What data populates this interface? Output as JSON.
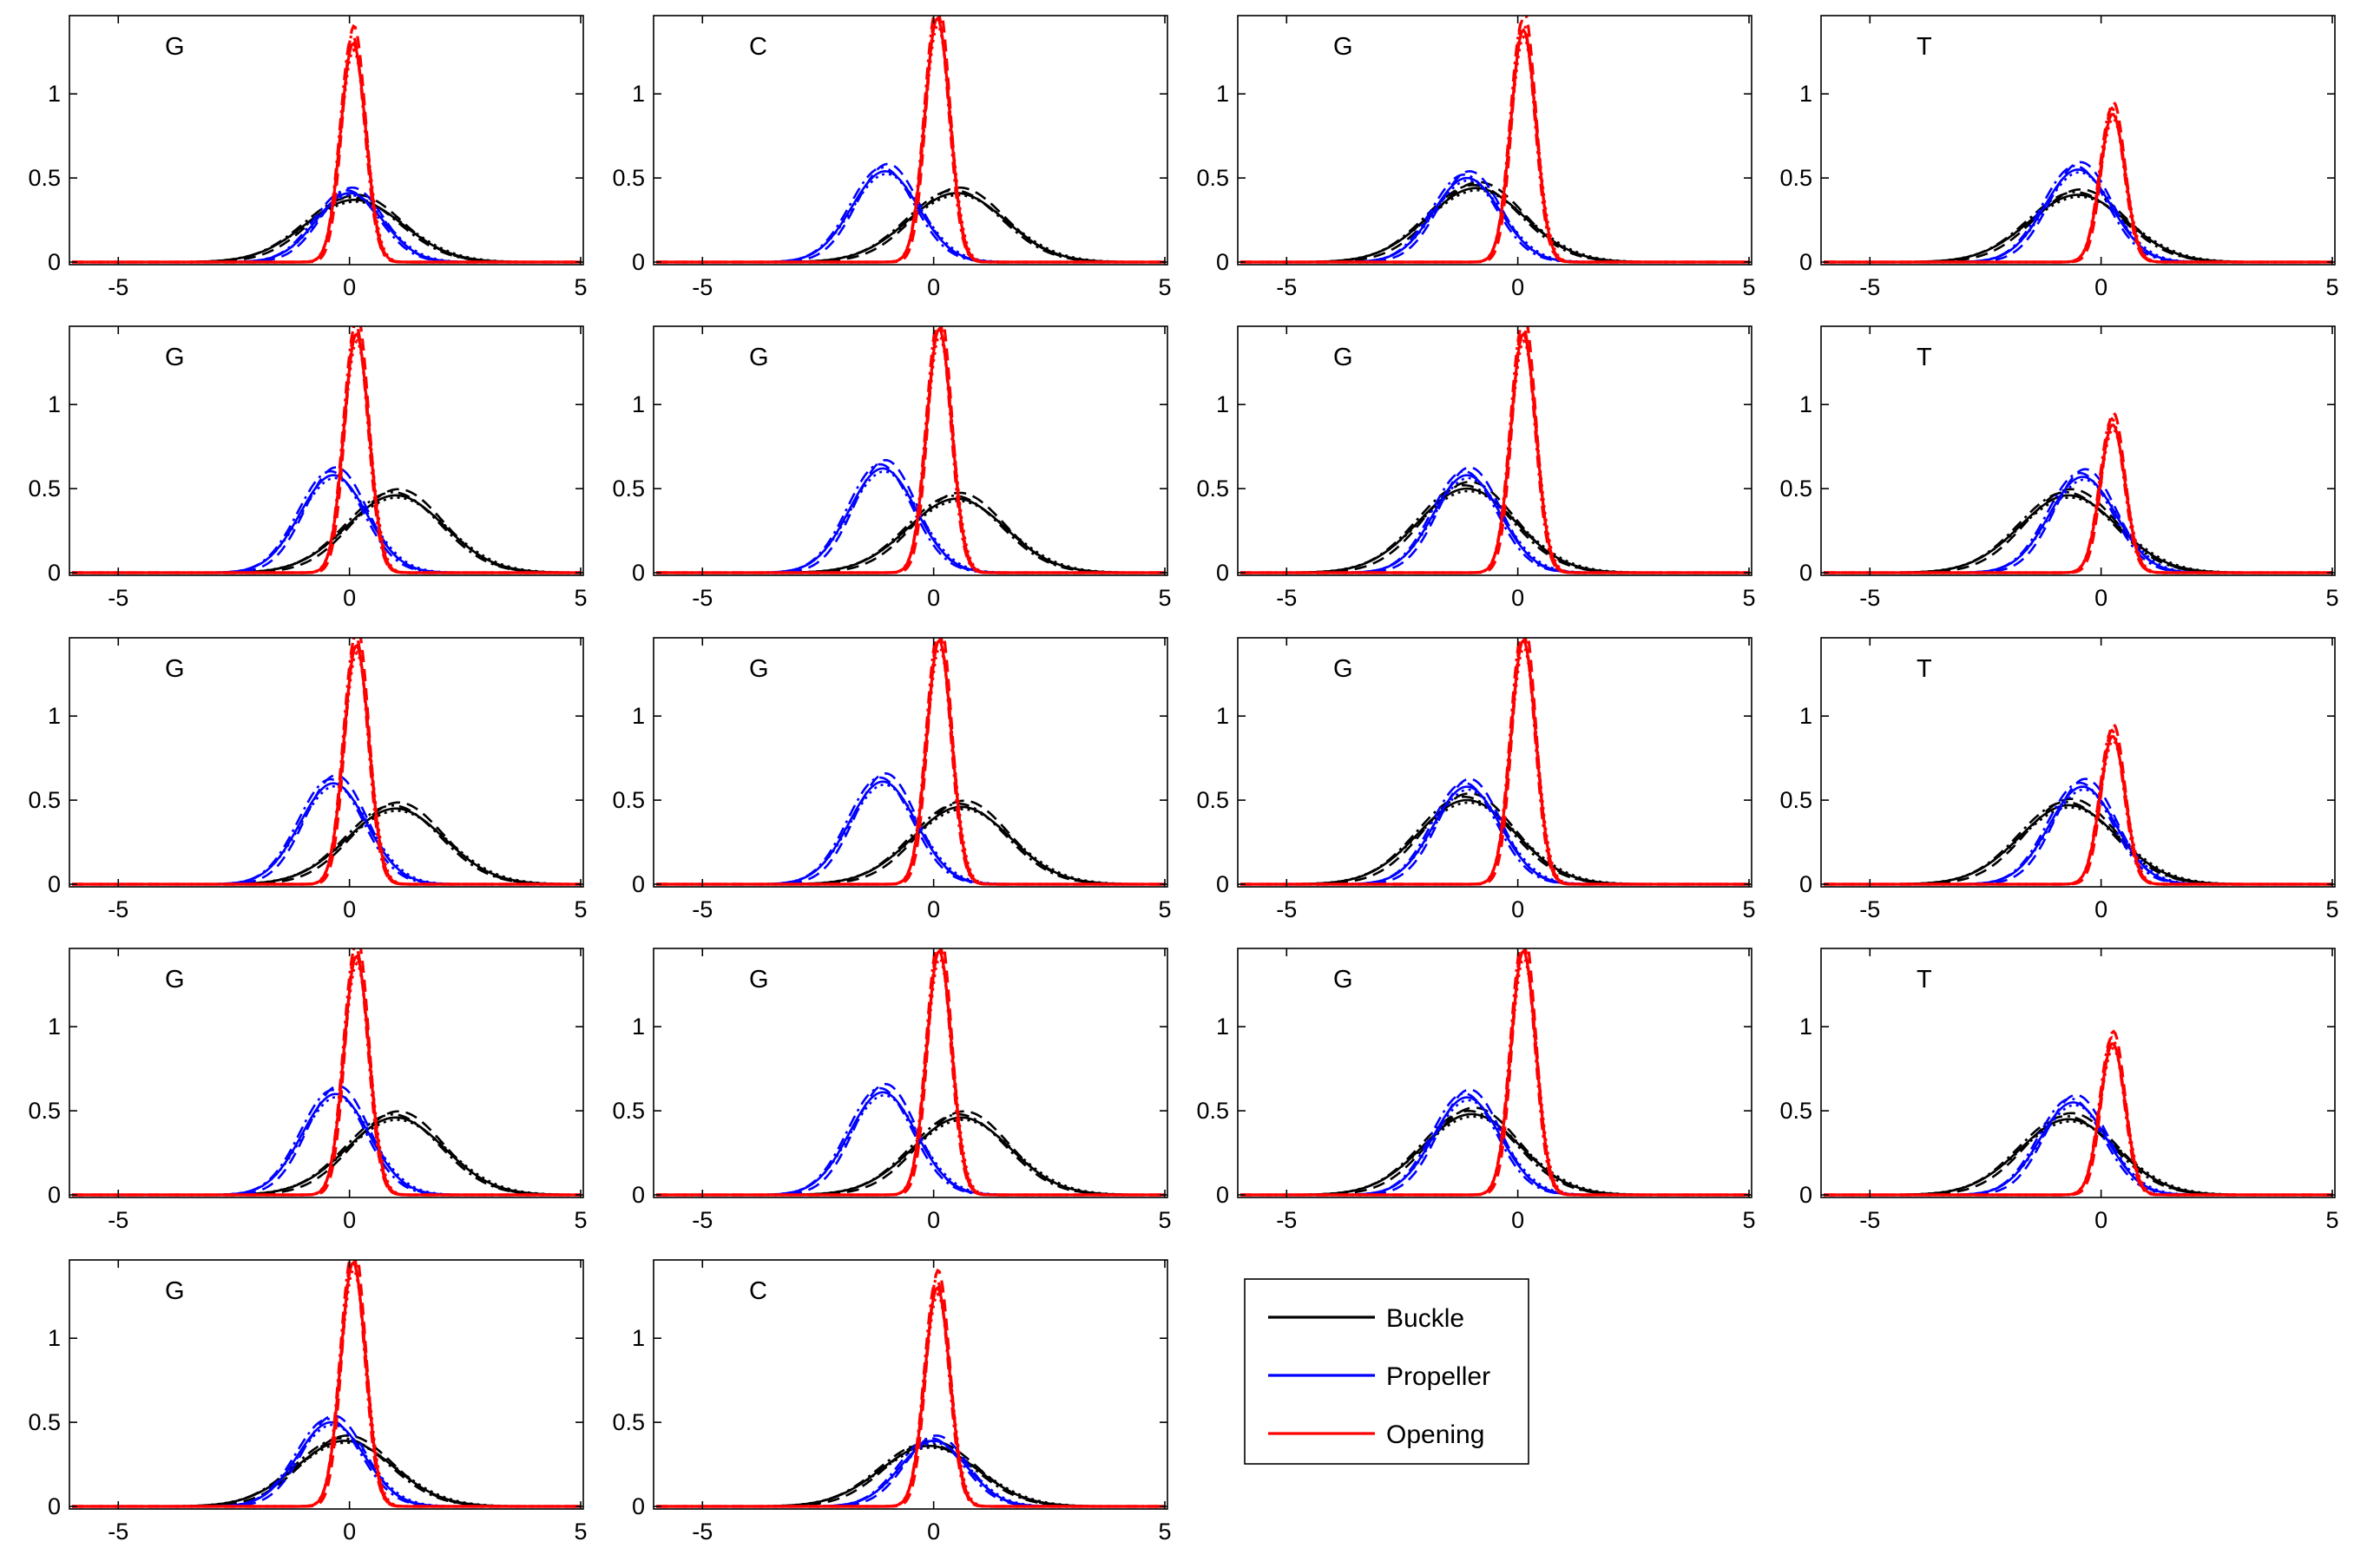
{
  "chart_data": {
    "type": "line",
    "layout": "small multiples, 5 rows x 4 columns (18 panels)",
    "xlim": [
      -6,
      5
    ],
    "ylim": [
      0,
      1.45
    ],
    "xticks": [
      "-5",
      "0",
      "5"
    ],
    "yticks": [
      "0",
      "0.5",
      "1"
    ],
    "line_styles": [
      "solid",
      "dashed",
      "dash-dot",
      "dotted"
    ],
    "legend": {
      "placement": "row 5, column 3",
      "entries": [
        {
          "label": "Buckle",
          "color": "#000000"
        },
        {
          "label": "Propeller",
          "color": "#0000ff"
        },
        {
          "label": "Opening",
          "color": "#ff0000"
        }
      ]
    },
    "panels": [
      {
        "base": "G",
        "row": 1,
        "col": 1,
        "buckle": {
          "mean": 0.1,
          "peak": 0.37
        },
        "propeller": {
          "mean": 0.0,
          "peak": 0.41
        },
        "opening": {
          "mean": 0.08,
          "peak": 1.3
        }
      },
      {
        "base": "C",
        "row": 1,
        "col": 2,
        "buckle": {
          "mean": 0.5,
          "peak": 0.41
        },
        "propeller": {
          "mean": -1.05,
          "peak": 0.54
        },
        "opening": {
          "mean": 0.08,
          "peak": 1.45
        }
      },
      {
        "base": "G",
        "row": 1,
        "col": 3,
        "buckle": {
          "mean": -0.9,
          "peak": 0.44
        },
        "propeller": {
          "mean": -1.1,
          "peak": 0.5
        },
        "opening": {
          "mean": 0.12,
          "peak": 1.38
        }
      },
      {
        "base": "T",
        "row": 1,
        "col": 4,
        "buckle": {
          "mean": -0.5,
          "peak": 0.4
        },
        "propeller": {
          "mean": -0.5,
          "peak": 0.55
        },
        "opening": {
          "mean": 0.25,
          "peak": 0.88
        }
      },
      {
        "base": "G",
        "row": 2,
        "col": 1,
        "buckle": {
          "mean": 1.0,
          "peak": 0.46
        },
        "propeller": {
          "mean": -0.35,
          "peak": 0.58
        },
        "opening": {
          "mean": 0.15,
          "peak": 1.42
        }
      },
      {
        "base": "G",
        "row": 2,
        "col": 2,
        "buckle": {
          "mean": 0.5,
          "peak": 0.44
        },
        "propeller": {
          "mean": -1.1,
          "peak": 0.62
        },
        "opening": {
          "mean": 0.12,
          "peak": 1.45
        }
      },
      {
        "base": "G",
        "row": 2,
        "col": 3,
        "buckle": {
          "mean": -1.1,
          "peak": 0.5
        },
        "propeller": {
          "mean": -1.1,
          "peak": 0.58
        },
        "opening": {
          "mean": 0.12,
          "peak": 1.42
        }
      },
      {
        "base": "T",
        "row": 2,
        "col": 4,
        "buckle": {
          "mean": -0.7,
          "peak": 0.46
        },
        "propeller": {
          "mean": -0.4,
          "peak": 0.57
        },
        "opening": {
          "mean": 0.25,
          "peak": 0.88
        }
      },
      {
        "base": "G",
        "row": 3,
        "col": 1,
        "buckle": {
          "mean": 1.0,
          "peak": 0.45
        },
        "propeller": {
          "mean": -0.35,
          "peak": 0.6
        },
        "opening": {
          "mean": 0.15,
          "peak": 1.42
        }
      },
      {
        "base": "G",
        "row": 3,
        "col": 2,
        "buckle": {
          "mean": 0.6,
          "peak": 0.46
        },
        "propeller": {
          "mean": -1.1,
          "peak": 0.61
        },
        "opening": {
          "mean": 0.12,
          "peak": 1.45
        }
      },
      {
        "base": "G",
        "row": 3,
        "col": 3,
        "buckle": {
          "mean": -1.1,
          "peak": 0.5
        },
        "propeller": {
          "mean": -1.1,
          "peak": 0.58
        },
        "opening": {
          "mean": 0.12,
          "peak": 1.45
        }
      },
      {
        "base": "T",
        "row": 3,
        "col": 4,
        "buckle": {
          "mean": -0.7,
          "peak": 0.47
        },
        "propeller": {
          "mean": -0.4,
          "peak": 0.58
        },
        "opening": {
          "mean": 0.25,
          "peak": 0.88
        }
      },
      {
        "base": "G",
        "row": 4,
        "col": 1,
        "buckle": {
          "mean": 1.0,
          "peak": 0.46
        },
        "propeller": {
          "mean": -0.3,
          "peak": 0.6
        },
        "opening": {
          "mean": 0.15,
          "peak": 1.42
        }
      },
      {
        "base": "G",
        "row": 4,
        "col": 2,
        "buckle": {
          "mean": 0.6,
          "peak": 0.46
        },
        "propeller": {
          "mean": -1.1,
          "peak": 0.61
        },
        "opening": {
          "mean": 0.12,
          "peak": 1.45
        }
      },
      {
        "base": "G",
        "row": 4,
        "col": 3,
        "buckle": {
          "mean": -1.0,
          "peak": 0.48
        },
        "propeller": {
          "mean": -1.1,
          "peak": 0.58
        },
        "opening": {
          "mean": 0.12,
          "peak": 1.45
        }
      },
      {
        "base": "T",
        "row": 4,
        "col": 4,
        "buckle": {
          "mean": -0.7,
          "peak": 0.45
        },
        "propeller": {
          "mean": -0.6,
          "peak": 0.55
        },
        "opening": {
          "mean": 0.25,
          "peak": 0.9
        }
      },
      {
        "base": "G",
        "row": 5,
        "col": 1,
        "buckle": {
          "mean": -0.1,
          "peak": 0.39
        },
        "propeller": {
          "mean": -0.4,
          "peak": 0.5
        },
        "opening": {
          "mean": 0.08,
          "peak": 1.45
        }
      },
      {
        "base": "C",
        "row": 5,
        "col": 2,
        "buckle": {
          "mean": -0.1,
          "peak": 0.36
        },
        "propeller": {
          "mean": 0.0,
          "peak": 0.39
        },
        "opening": {
          "mean": 0.08,
          "peak": 1.3
        }
      }
    ]
  }
}
